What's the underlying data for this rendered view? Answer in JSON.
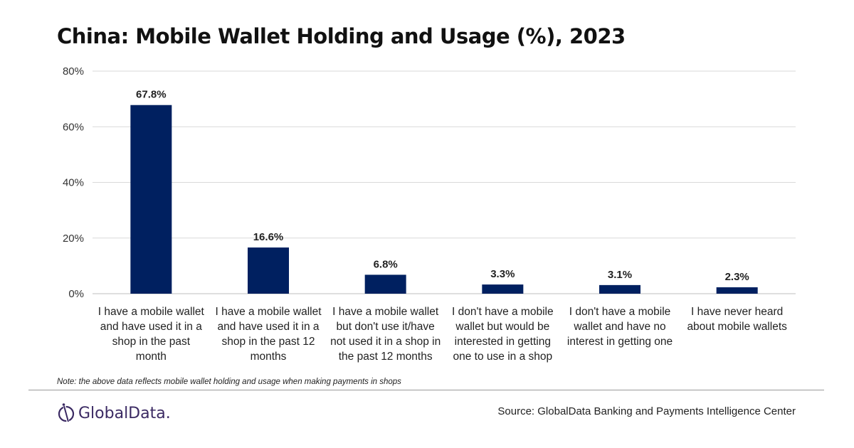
{
  "chart_data": {
    "type": "bar",
    "title": "China: Mobile Wallet Holding and Usage (%), 2023",
    "categories": [
      "I have a mobile wallet and have used it in a shop in the past month",
      "I have a mobile wallet and have used it in a shop in the past 12 months",
      "I have a mobile wallet but don't use it/have not used it in a shop in the past 12 months",
      "I don't have a mobile wallet but would be interested in getting one to use in a shop",
      "I don't have a mobile wallet and have no interest in getting one",
      "I have never heard about mobile wallets"
    ],
    "category_lines": [
      [
        "I have a mobile wallet",
        "and have used it in a",
        "shop in the past",
        "month"
      ],
      [
        "I have a mobile wallet",
        "and have used it in a",
        "shop in the past 12",
        "months"
      ],
      [
        "I have a mobile wallet",
        "but don't use it/have",
        "not used it in a shop in",
        "the past 12 months"
      ],
      [
        "I don't have a mobile",
        "wallet but would be",
        "interested in getting",
        "one to use in a shop"
      ],
      [
        "I don't have a mobile",
        "wallet and have no",
        "interest in getting one"
      ],
      [
        "I have never heard",
        "about mobile wallets"
      ]
    ],
    "values": [
      67.8,
      16.6,
      6.8,
      3.3,
      3.1,
      2.3
    ],
    "data_labels": [
      "67.8%",
      "16.6%",
      "6.8%",
      "3.3%",
      "3.1%",
      "2.3%"
    ],
    "ylim": [
      0,
      80
    ],
    "yticks": [
      0,
      20,
      40,
      60,
      80
    ],
    "ytick_labels": [
      "0%",
      "20%",
      "40%",
      "60%",
      "80%"
    ],
    "grid": true,
    "bar_color": "#002060",
    "xlabel": "",
    "ylabel": ""
  },
  "note": "Note: the above data reflects mobile wallet holding and usage when making payments in shops",
  "logo_text": "GlobalData.",
  "source": "Source: GlobalData Banking and Payments Intelligence Center"
}
